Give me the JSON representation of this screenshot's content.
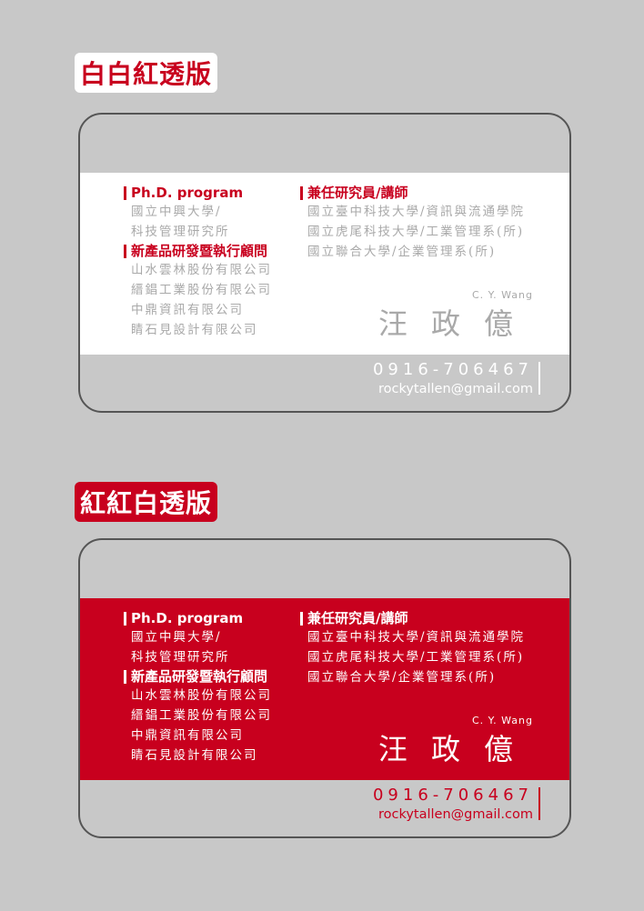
{
  "versions": [
    {
      "label": "白白紅透版"
    },
    {
      "label": "紅紅白透版"
    }
  ],
  "card": {
    "left_head": "Ph.D. program",
    "left_lines_1": [
      "國立中興大學/",
      "科技管理研究所"
    ],
    "left_head_2": "新產品研發暨執行顧問",
    "left_lines_2": [
      "山水雲林股份有限公司",
      "縉錩工業股份有限公司",
      "中鼎資訊有限公司",
      "睛石見設計有限公司"
    ],
    "right_head": "兼任研究員/講師",
    "right_lines": [
      "國立臺中科技大學/資訊與流通學院",
      "國立虎尾科技大學/工業管理系(所)",
      "國立聯合大學/企業管理系(所)"
    ],
    "name_en": "C. Y. Wang",
    "name_zh": "汪政億",
    "phone": "0916-706467",
    "email": "rockytallen@gmail.com"
  },
  "colors": {
    "red": "#c8001e",
    "grey": "#c8c8c8",
    "text_grey": "#a9a9a9"
  }
}
